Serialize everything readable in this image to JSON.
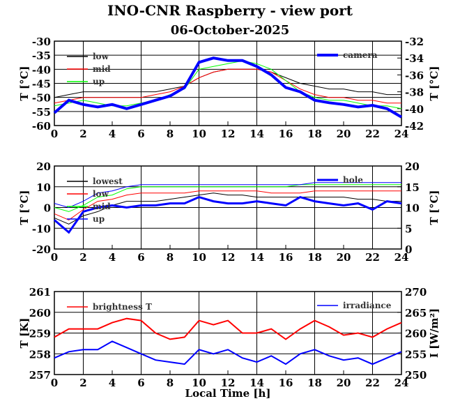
{
  "title": "INO-CNR Raspberry - view port",
  "date": "06-October-2025",
  "chart_data": [
    {
      "type": "line",
      "ylabel": "T [°C]",
      "y2label": "T [°C]",
      "ylim": [
        -60,
        -30
      ],
      "y2lim": [
        -42,
        -32
      ],
      "yticks": [
        -60,
        -55,
        -50,
        -45,
        -40,
        -35,
        -30
      ],
      "y2ticks": [
        -42,
        -40,
        -38,
        -36,
        -34,
        -32
      ],
      "x": [
        0,
        1,
        2,
        3,
        4,
        5,
        6,
        7,
        8,
        9,
        10,
        11,
        12,
        13,
        14,
        15,
        16,
        17,
        18,
        19,
        20,
        21,
        22,
        23,
        24
      ],
      "series": [
        {
          "name": "low",
          "color": "#000000",
          "axis": "left",
          "width": 1,
          "values": [
            -50,
            -49,
            -48,
            -48,
            -48,
            -48,
            -48,
            -48,
            -47,
            -46,
            -43,
            -41,
            -40,
            -40,
            -40,
            -41,
            -43,
            -45,
            -46,
            -47,
            -47,
            -48,
            -48,
            -49,
            -49
          ]
        },
        {
          "name": "mid",
          "color": "#ff0000",
          "axis": "left",
          "width": 1,
          "values": [
            -52,
            -51,
            -50,
            -50,
            -50,
            -50,
            -50,
            -49,
            -48,
            -46,
            -43,
            -41,
            -40,
            -40,
            -40,
            -41,
            -44,
            -47,
            -49,
            -50,
            -50,
            -51,
            -51,
            -52,
            -52
          ]
        },
        {
          "name": "up",
          "color": "#00ff00",
          "axis": "left",
          "width": 1,
          "values": [
            -53,
            -52,
            -51,
            -52,
            -53,
            -53,
            -52,
            -51,
            -49,
            -47,
            -40,
            -39,
            -38,
            -37,
            -38,
            -40,
            -44,
            -48,
            -50,
            -51,
            -51,
            -52,
            -53,
            -53,
            -54
          ]
        },
        {
          "name": "camera",
          "color": "#0000ff",
          "axis": "right",
          "width": 4,
          "values": [
            -40.5,
            -39,
            -39.5,
            -39.8,
            -39.5,
            -40,
            -39.5,
            -39,
            -38.5,
            -37.5,
            -34.5,
            -34,
            -34.3,
            -34.3,
            -35,
            -36,
            -37.5,
            -38,
            -39,
            -39.3,
            -39.5,
            -39.8,
            -39.6,
            -40,
            -41
          ]
        }
      ]
    },
    {
      "type": "line",
      "ylabel": "T [°C]",
      "y2label": "T [°C]",
      "ylim": [
        -20,
        20
      ],
      "y2lim": [
        0,
        20
      ],
      "yticks": [
        -20,
        -10,
        0,
        10,
        20
      ],
      "y2ticks": [
        0,
        5,
        10,
        15,
        20
      ],
      "x": [
        0,
        1,
        2,
        3,
        4,
        5,
        6,
        7,
        8,
        9,
        10,
        11,
        12,
        13,
        14,
        15,
        16,
        17,
        18,
        19,
        20,
        21,
        22,
        23,
        24
      ],
      "series": [
        {
          "name": "lowest",
          "color": "#000000",
          "axis": "left",
          "width": 1,
          "values": [
            -5,
            -8,
            -4,
            -2,
            1,
            3,
            3,
            3,
            4,
            5,
            6,
            7,
            6,
            6,
            5,
            5,
            5,
            5,
            5,
            5,
            5,
            4,
            4,
            3,
            3
          ]
        },
        {
          "name": "low",
          "color": "#ff0000",
          "axis": "left",
          "width": 1,
          "values": [
            -3,
            -6,
            -1,
            3,
            4,
            6,
            7,
            7,
            7,
            7,
            8,
            8,
            8,
            8,
            8,
            7,
            7,
            7,
            8,
            8,
            8,
            8,
            8,
            8,
            8
          ]
        },
        {
          "name": "mid",
          "color": "#00ff00",
          "axis": "left",
          "width": 1,
          "values": [
            0,
            -2,
            1,
            5,
            6,
            9,
            10,
            10,
            10,
            10,
            10,
            10,
            10,
            10,
            10,
            10,
            10,
            11,
            11,
            11,
            11,
            11,
            11,
            11,
            11
          ]
        },
        {
          "name": "up",
          "color": "#0000ff",
          "axis": "left",
          "width": 1,
          "values": [
            2,
            0,
            3,
            7,
            8,
            10,
            11,
            11,
            11,
            11,
            11,
            11,
            11,
            11,
            11,
            11,
            11,
            11,
            12,
            12,
            12,
            12,
            12,
            12,
            12
          ]
        },
        {
          "name": "hole",
          "color": "#0000ff",
          "axis": "right",
          "width": 3,
          "values": [
            7,
            4,
            9,
            10,
            10.5,
            10,
            10.5,
            10.5,
            11,
            11,
            12.5,
            11.5,
            11,
            11,
            11.5,
            11,
            10.5,
            12.5,
            11.5,
            11,
            10.5,
            11,
            9.5,
            11.5,
            11
          ]
        }
      ]
    },
    {
      "type": "line",
      "ylabel": "T [K]",
      "y2label": "I [W/m²]",
      "xlabel": "Local Time [h]",
      "ylim": [
        257,
        261
      ],
      "y2lim": [
        250,
        270
      ],
      "yticks": [
        257,
        258,
        259,
        260,
        261
      ],
      "y2ticks": [
        250,
        255,
        260,
        265,
        270
      ],
      "x": [
        0,
        1,
        2,
        3,
        4,
        5,
        6,
        7,
        8,
        9,
        10,
        11,
        12,
        13,
        14,
        15,
        16,
        17,
        18,
        19,
        20,
        21,
        22,
        23,
        24
      ],
      "series": [
        {
          "name": "brightness T",
          "color": "#ff0000",
          "axis": "left",
          "width": 2,
          "values": [
            258.8,
            259.2,
            259.2,
            259.2,
            259.5,
            259.7,
            259.6,
            259.0,
            258.7,
            258.8,
            259.6,
            259.4,
            259.6,
            259.0,
            259.0,
            259.2,
            258.7,
            259.2,
            259.6,
            259.3,
            258.9,
            259.0,
            258.8,
            259.2,
            259.5
          ]
        },
        {
          "name": "irradiance",
          "color": "#0000ff",
          "axis": "right",
          "width": 2,
          "values": [
            254,
            255.5,
            256,
            256,
            258,
            256.5,
            255,
            253.5,
            253,
            252.5,
            256,
            255,
            256,
            254,
            253,
            254.5,
            252.5,
            255,
            256,
            254.5,
            253.5,
            254,
            252.5,
            254,
            255.5
          ]
        }
      ]
    }
  ],
  "xticks": [
    0,
    2,
    4,
    6,
    8,
    10,
    12,
    14,
    16,
    18,
    20,
    22,
    24
  ]
}
